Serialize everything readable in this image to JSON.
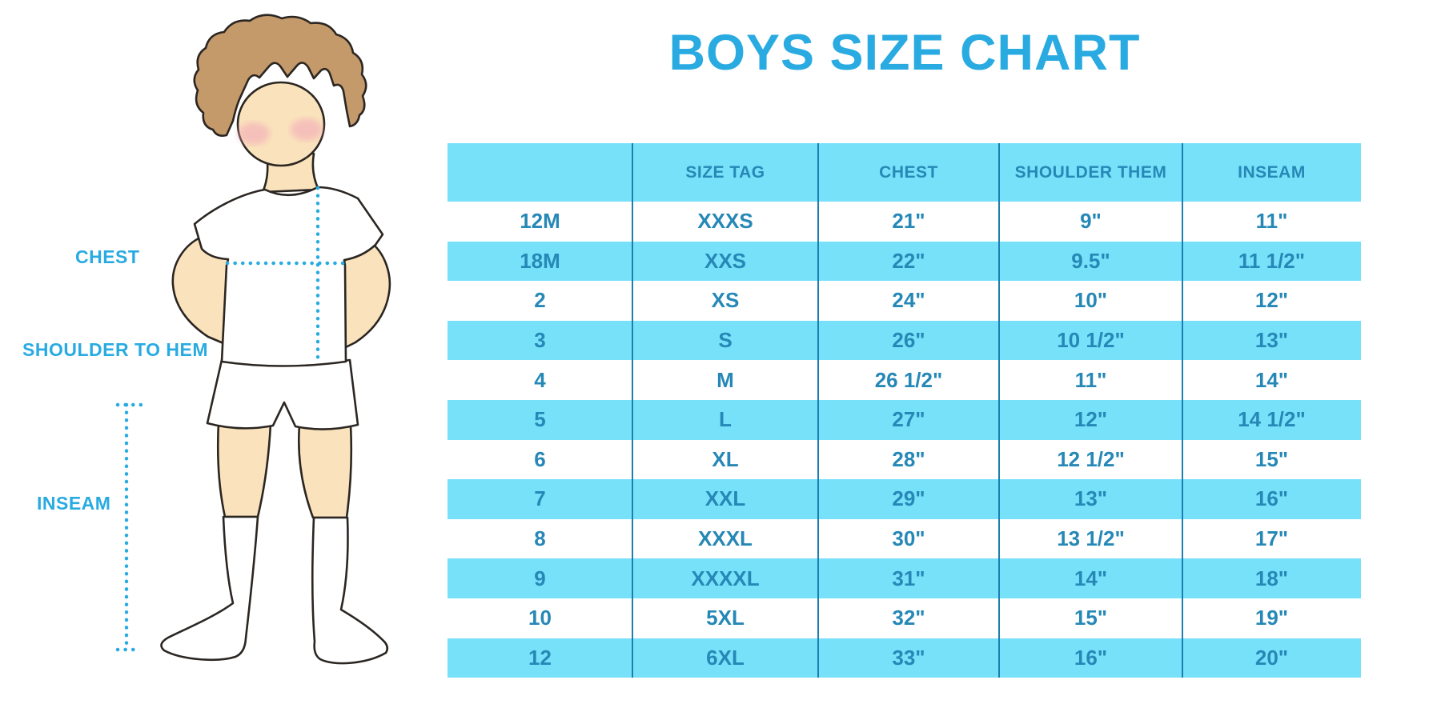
{
  "title": "BOYS SIZE CHART",
  "diagram": {
    "chest_label": "CHEST",
    "shoulder_to_hem_label": "SHOULDER TO HEM",
    "inseam_label": "INSEAM"
  },
  "chart_data": {
    "type": "table",
    "title": "BOYS SIZE CHART",
    "columns": [
      "",
      "SIZE TAG",
      "CHEST",
      "SHOULDER THEM",
      "INSEAM"
    ],
    "rows": [
      [
        "12M",
        "XXXS",
        "21\"",
        "9\"",
        "11\""
      ],
      [
        "18M",
        "XXS",
        "22\"",
        "9.5\"",
        "11 1/2\""
      ],
      [
        "2",
        "XS",
        "24\"",
        "10\"",
        "12\""
      ],
      [
        "3",
        "S",
        "26\"",
        "10 1/2\"",
        "13\""
      ],
      [
        "4",
        "M",
        "26 1/2\"",
        "11\"",
        "14\""
      ],
      [
        "5",
        "L",
        "27\"",
        "12\"",
        "14 1/2\""
      ],
      [
        "6",
        "XL",
        "28\"",
        "12 1/2\"",
        "15\""
      ],
      [
        "7",
        "XXL",
        "29\"",
        "13\"",
        "16\""
      ],
      [
        "8",
        "XXXL",
        "30\"",
        "13 1/2\"",
        "17\""
      ],
      [
        "9",
        "XXXXL",
        "31\"",
        "14\"",
        "18\""
      ],
      [
        "10",
        "5XL",
        "32\"",
        "15\"",
        "19\""
      ],
      [
        "12",
        "6XL",
        "33\"",
        "16\"",
        "20\""
      ]
    ],
    "row_striping": "alternating white / light-blue, starting white",
    "legend_position": "none",
    "grid": "vertical dividers only"
  },
  "colors": {
    "accent": "#29ABE2",
    "stripe": "#77E1FA",
    "tabletext": "#2688B6",
    "divider": "#1D7FAF",
    "skin": "#FAE3BC",
    "hair": "#C59A6B",
    "cheek": "#F2A9B8",
    "outline": "#2B2622"
  }
}
